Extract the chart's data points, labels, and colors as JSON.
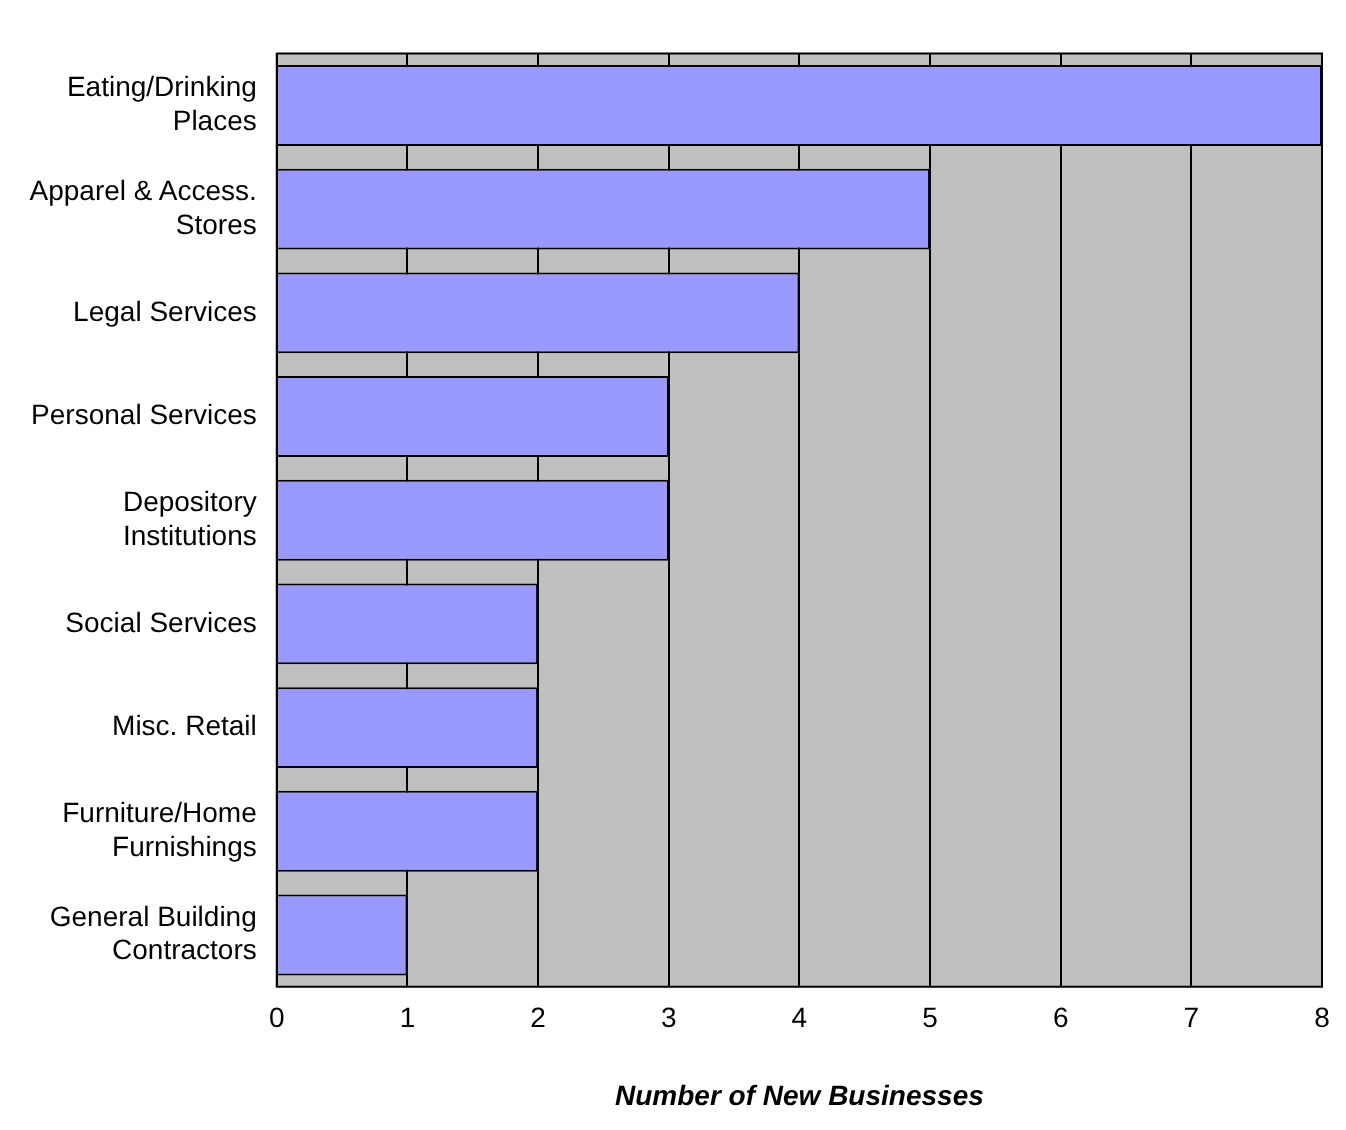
{
  "chart_data": {
    "type": "bar",
    "orientation": "horizontal",
    "xlabel": "Number of New Businesses",
    "categories": [
      "Eating/Drinking Places",
      "Apparel & Access. Stores",
      "Legal Services",
      "Personal Services",
      "Depository Institutions",
      "Social Services",
      "Misc. Retail",
      "Furniture/Home Furnishings",
      "General Building Contractors"
    ],
    "values": [
      8,
      5,
      4,
      3,
      3,
      2,
      2,
      2,
      1
    ],
    "color": "#9999ff",
    "xlim": [
      0,
      8
    ],
    "xticks": [
      0,
      1,
      2,
      3,
      4,
      5,
      6,
      7,
      8
    ],
    "grid": "x",
    "legend": false
  }
}
